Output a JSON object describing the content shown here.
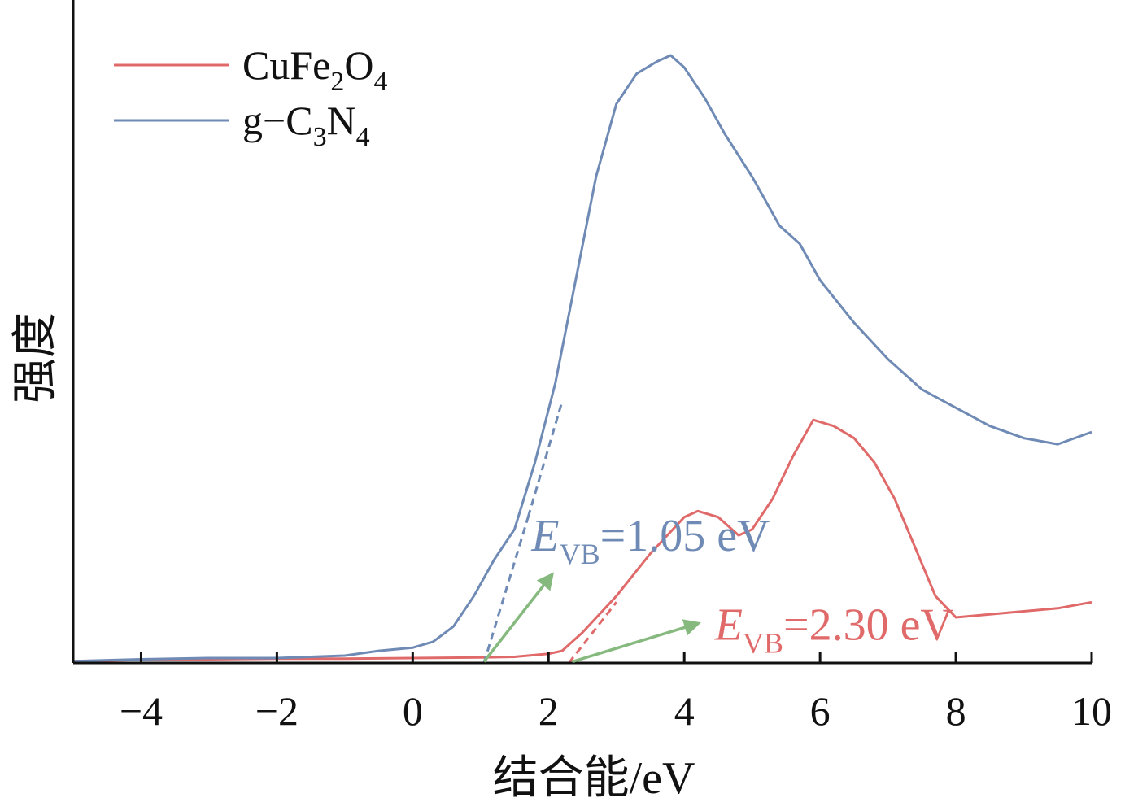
{
  "chart_data": {
    "type": "line",
    "xlabel": "结合能/eV",
    "ylabel": "强度",
    "xlim": [
      -5,
      10
    ],
    "ylim": [
      0,
      100
    ],
    "xticks": [
      -4,
      -2,
      0,
      2,
      4,
      6,
      8,
      10
    ],
    "xtick_labels": [
      "−4",
      "−2",
      "0",
      "2",
      "4",
      "6",
      "8",
      "10"
    ],
    "legend_position": "top-left",
    "grid": false,
    "series": [
      {
        "name": "CuFe2O4",
        "name_parts": {
          "a": "CuFe",
          "b": "2",
          "c": "O",
          "d": "4"
        },
        "color": "#e06a6a",
        "x": [
          -5,
          -4,
          -3,
          -2,
          -1,
          0,
          1,
          1.5,
          2,
          2.2,
          2.5,
          3,
          3.5,
          4,
          4.2,
          4.5,
          4.8,
          5.0,
          5.3,
          5.6,
          5.9,
          6.2,
          6.5,
          6.8,
          7.1,
          7.4,
          7.7,
          8.0,
          8.5,
          9.0,
          9.5,
          10
        ],
        "y": [
          0.3,
          0.5,
          0.6,
          0.7,
          0.7,
          0.8,
          0.9,
          1.0,
          1.5,
          2.0,
          5.0,
          11.0,
          18.0,
          24.0,
          25.0,
          24.0,
          21.0,
          22.0,
          27.0,
          34.0,
          40.0,
          39.0,
          37.0,
          33.0,
          27.0,
          19.0,
          11.0,
          7.5,
          8.0,
          8.5,
          9.0,
          10.0
        ]
      },
      {
        "name": "g−C3N4",
        "name_parts": {
          "a": "g−C",
          "b": "3",
          "c": "N",
          "d": "4"
        },
        "color": "#6f8bb5",
        "x": [
          -5,
          -4,
          -3,
          -2,
          -1,
          -0.5,
          0,
          0.3,
          0.6,
          0.9,
          1.2,
          1.5,
          1.8,
          2.1,
          2.4,
          2.7,
          3.0,
          3.3,
          3.6,
          3.8,
          4.0,
          4.3,
          4.6,
          5.0,
          5.4,
          5.7,
          6.0,
          6.5,
          7.0,
          7.5,
          8.0,
          8.5,
          9.0,
          9.5,
          10
        ],
        "y": [
          0.3,
          0.6,
          0.8,
          0.8,
          1.2,
          2.0,
          2.5,
          3.5,
          6.0,
          11.0,
          17.0,
          22.0,
          33.0,
          46.0,
          63.0,
          80.0,
          92.0,
          97.0,
          99.0,
          100.0,
          98.0,
          93.0,
          87.0,
          80.0,
          72.0,
          69.0,
          63.0,
          56.0,
          50.0,
          45.0,
          42.0,
          39.0,
          37.0,
          36.0,
          38.0
        ]
      }
    ],
    "fit_lines": [
      {
        "x1": 1.05,
        "y1": 0,
        "x2": 1.7,
        "y2": 24,
        "color": "#6f8bb5"
      },
      {
        "x1": 1.7,
        "y1": 24,
        "x2": 2.2,
        "y2": 43,
        "color": "#6f8bb5"
      },
      {
        "x1": 2.3,
        "y1": 0,
        "x2": 3.0,
        "y2": 10,
        "color": "#e06a6a"
      }
    ],
    "annotations": [
      {
        "main": "E",
        "sub": "VB",
        "rest": "=1.05 eV",
        "color": "#6f8bb5",
        "text_x": 1.75,
        "text_y": 18.5,
        "arrow_from": [
          1.05,
          0.2
        ],
        "arrow_to": [
          2.05,
          14.5
        ],
        "arrow_color": "#86b97e"
      },
      {
        "main": "E",
        "sub": "VB",
        "rest": "=2.30 eV",
        "color": "#e06a6a",
        "text_x": 4.45,
        "text_y": 3.8,
        "arrow_from": [
          2.35,
          0.2
        ],
        "arrow_to": [
          4.2,
          6.5
        ],
        "arrow_color": "#86b97e"
      }
    ]
  }
}
